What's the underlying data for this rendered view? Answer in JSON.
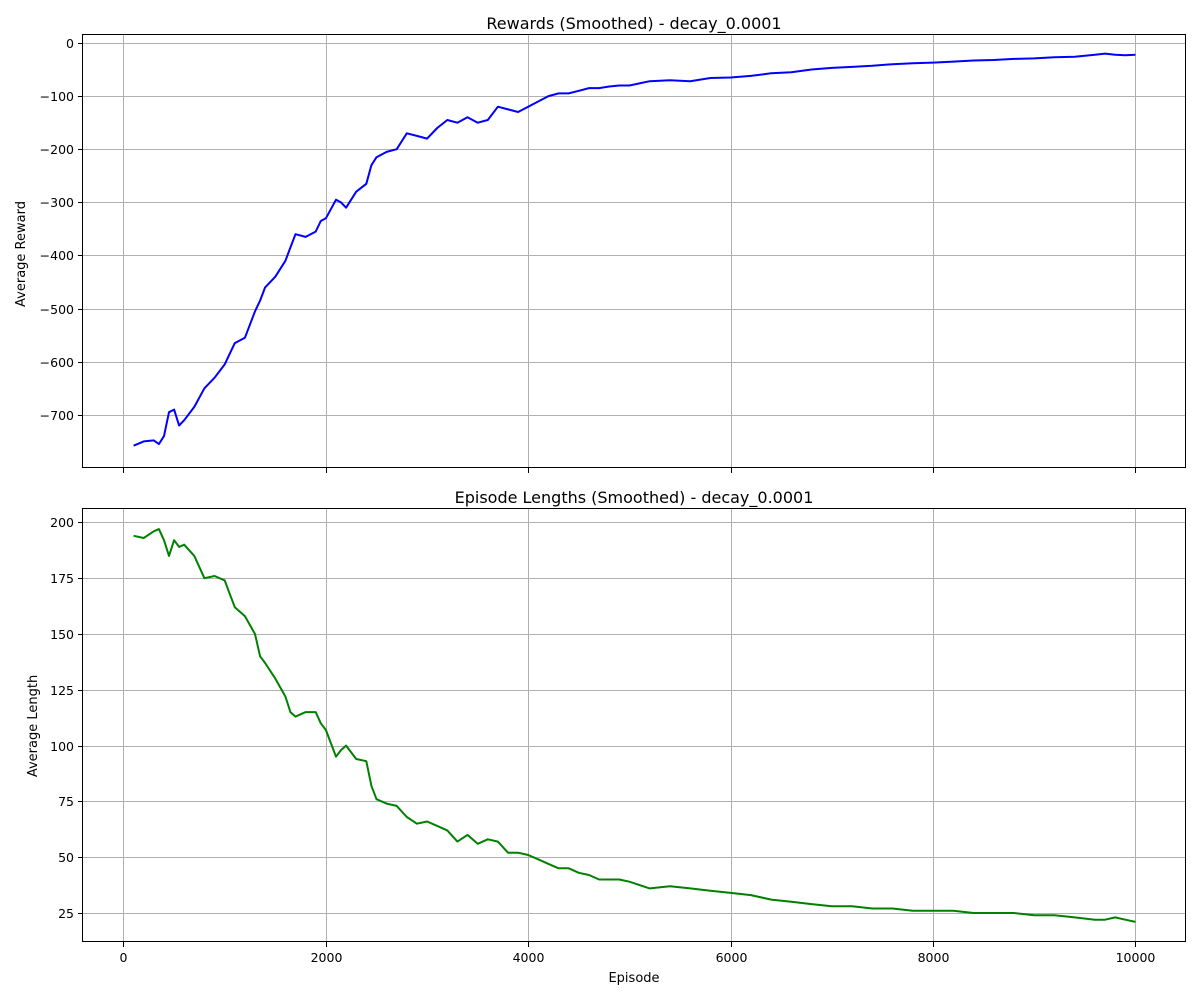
{
  "chart_data": [
    {
      "type": "line",
      "title": "Rewards (Smoothed) - decay_0.0001",
      "xlabel": "",
      "ylabel": "Average Reward",
      "xlim": [
        -400,
        10500
      ],
      "ylim": [
        -800,
        15
      ],
      "xticks": [
        0,
        2000,
        4000,
        6000,
        8000,
        10000
      ],
      "xtick_labels": [
        "",
        "",
        "",
        "",
        "",
        ""
      ],
      "yticks": [
        0,
        -100,
        -200,
        -300,
        -400,
        -500,
        -600,
        -700
      ],
      "ytick_labels": [
        "0",
        "−100",
        "−200",
        "−300",
        "−400",
        "−500",
        "−600",
        "−700"
      ],
      "grid": true,
      "color": "#0000ff",
      "series": [
        {
          "x": [
            100,
            200,
            300,
            350,
            400,
            450,
            500,
            550,
            600,
            700,
            800,
            900,
            1000,
            1050,
            1100,
            1200,
            1300,
            1350,
            1400,
            1500,
            1600,
            1650,
            1700,
            1800,
            1900,
            1950,
            2000,
            2100,
            2150,
            2200,
            2300,
            2400,
            2450,
            2500,
            2600,
            2700,
            2800,
            2900,
            3000,
            3100,
            3200,
            3300,
            3400,
            3500,
            3600,
            3700,
            3800,
            3900,
            4000,
            4100,
            4200,
            4300,
            4400,
            4500,
            4600,
            4700,
            4800,
            4900,
            5000,
            5200,
            5400,
            5600,
            5800,
            6000,
            6200,
            6400,
            6600,
            6800,
            7000,
            7200,
            7400,
            7600,
            7800,
            8000,
            8200,
            8400,
            8600,
            8800,
            9000,
            9200,
            9400,
            9600,
            9700,
            9800,
            9900,
            10000
          ],
          "y": [
            -758,
            -750,
            -748,
            -755,
            -740,
            -695,
            -690,
            -720,
            -710,
            -685,
            -650,
            -630,
            -605,
            -585,
            -565,
            -555,
            -505,
            -485,
            -460,
            -440,
            -410,
            -385,
            -360,
            -365,
            -355,
            -335,
            -330,
            -295,
            -300,
            -310,
            -280,
            -265,
            -230,
            -215,
            -205,
            -200,
            -170,
            -175,
            -180,
            -160,
            -145,
            -150,
            -140,
            -150,
            -145,
            -120,
            -125,
            -130,
            -120,
            -110,
            -100,
            -95,
            -95,
            -90,
            -85,
            -85,
            -82,
            -80,
            -80,
            -72,
            -70,
            -72,
            -66,
            -65,
            -62,
            -57,
            -55,
            -50,
            -47,
            -45,
            -43,
            -40,
            -38,
            -37,
            -35,
            -33,
            -32,
            -30,
            -29,
            -27,
            -26,
            -22,
            -20,
            -22,
            -23,
            -22
          ]
        }
      ]
    },
    {
      "type": "line",
      "title": "Episode Lengths (Smoothed) - decay_0.0001",
      "xlabel": "Episode",
      "ylabel": "Average Length",
      "xlim": [
        -400,
        10500
      ],
      "ylim": [
        12,
        206
      ],
      "xticks": [
        0,
        2000,
        4000,
        6000,
        8000,
        10000
      ],
      "xtick_labels": [
        "0",
        "2000",
        "4000",
        "6000",
        "8000",
        "10000"
      ],
      "yticks": [
        25,
        50,
        75,
        100,
        125,
        150,
        175,
        200
      ],
      "ytick_labels": [
        "25",
        "50",
        "75",
        "100",
        "125",
        "150",
        "175",
        "200"
      ],
      "grid": true,
      "color": "#008000",
      "series": [
        {
          "x": [
            100,
            200,
            300,
            350,
            400,
            450,
            500,
            550,
            600,
            700,
            800,
            900,
            1000,
            1050,
            1100,
            1200,
            1300,
            1350,
            1400,
            1500,
            1600,
            1650,
            1700,
            1800,
            1900,
            1950,
            2000,
            2100,
            2150,
            2200,
            2300,
            2400,
            2450,
            2500,
            2600,
            2700,
            2800,
            2900,
            3000,
            3100,
            3200,
            3300,
            3400,
            3500,
            3600,
            3700,
            3800,
            3900,
            4000,
            4100,
            4200,
            4300,
            4400,
            4500,
            4600,
            4700,
            4800,
            4900,
            5000,
            5200,
            5400,
            5600,
            5800,
            6000,
            6200,
            6400,
            6600,
            6800,
            7000,
            7200,
            7400,
            7600,
            7800,
            8000,
            8200,
            8400,
            8600,
            8800,
            9000,
            9200,
            9400,
            9600,
            9700,
            9800,
            9900,
            10000
          ],
          "y": [
            194,
            193,
            196,
            197,
            192,
            185,
            192,
            189,
            190,
            185,
            175,
            176,
            174,
            168,
            162,
            158,
            150,
            140,
            137,
            130,
            122,
            115,
            113,
            115,
            115,
            110,
            107,
            95,
            98,
            100,
            94,
            93,
            82,
            76,
            74,
            73,
            68,
            65,
            66,
            64,
            62,
            57,
            60,
            56,
            58,
            57,
            52,
            52,
            51,
            49,
            47,
            45,
            45,
            43,
            42,
            40,
            40,
            40,
            39,
            36,
            37,
            36,
            35,
            34,
            33,
            31,
            30,
            29,
            28,
            28,
            27,
            27,
            26,
            26,
            26,
            25,
            25,
            25,
            24,
            24,
            23,
            22,
            22,
            23,
            22,
            21
          ]
        }
      ]
    }
  ]
}
